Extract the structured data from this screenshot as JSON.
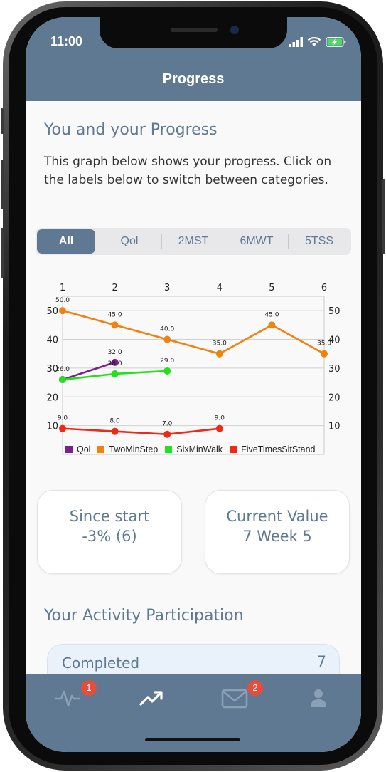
{
  "status_bar": {
    "time": "11:00"
  },
  "nav": {
    "title": "Progress"
  },
  "intro": {
    "heading": "You and your Progress",
    "description": "This graph below shows your progress. Click on the labels below to switch between categories."
  },
  "segments": {
    "items": [
      "All",
      "Qol",
      "2MST",
      "6MWT",
      "5TSS"
    ],
    "selected": "All"
  },
  "chart_data": {
    "type": "line",
    "x": [
      1,
      2,
      3,
      4,
      5,
      6
    ],
    "xlim": [
      1,
      6
    ],
    "ylim": [
      0,
      55
    ],
    "y_ticks": [
      10,
      20,
      30,
      40,
      50
    ],
    "grid": true,
    "legend_position": "bottom",
    "series": [
      {
        "name": "Qol",
        "color": "#7b1f8e",
        "x": [
          1,
          2
        ],
        "values": [
          26.0,
          32.0
        ],
        "labels": [
          "26.0",
          "32.0"
        ]
      },
      {
        "name": "TwoMinStep",
        "color": "#f0820f",
        "x": [
          1,
          2,
          3,
          4,
          5,
          6
        ],
        "values": [
          50.0,
          45.0,
          40.0,
          35.0,
          45.0,
          35.0
        ],
        "labels": [
          "50.0",
          "45.0",
          "40.0",
          "35.0",
          "45.0",
          "35.0"
        ]
      },
      {
        "name": "SixMinWalk",
        "color": "#22e01c",
        "x": [
          1,
          2,
          3
        ],
        "values": [
          26.0,
          28.0,
          29.0
        ],
        "labels": [
          "",
          "28.0",
          "29.0"
        ]
      },
      {
        "name": "FiveTimesSitStand",
        "color": "#ec2a17",
        "x": [
          1,
          2,
          3,
          4
        ],
        "values": [
          9.0,
          8.0,
          7.0,
          9.0
        ],
        "labels": [
          "9.0",
          "8.0",
          "7.0",
          "9.0"
        ]
      }
    ]
  },
  "stats": {
    "since_start": {
      "label": "Since start",
      "value": "-3% (6)"
    },
    "current_value": {
      "label": "Current Value",
      "value": "7 Week 5"
    }
  },
  "participation": {
    "heading": "Your Activity Participation",
    "completed_label": "Completed",
    "completed_value": "7"
  },
  "tabbar": {
    "items": [
      {
        "icon": "activity-icon",
        "badge": "1"
      },
      {
        "icon": "trending-up-icon",
        "badge": ""
      },
      {
        "icon": "mail-icon",
        "badge": "2"
      },
      {
        "icon": "profile-icon",
        "badge": ""
      }
    ]
  },
  "colors": {
    "primary": "#5f7993",
    "badge": "#e74c3c"
  }
}
